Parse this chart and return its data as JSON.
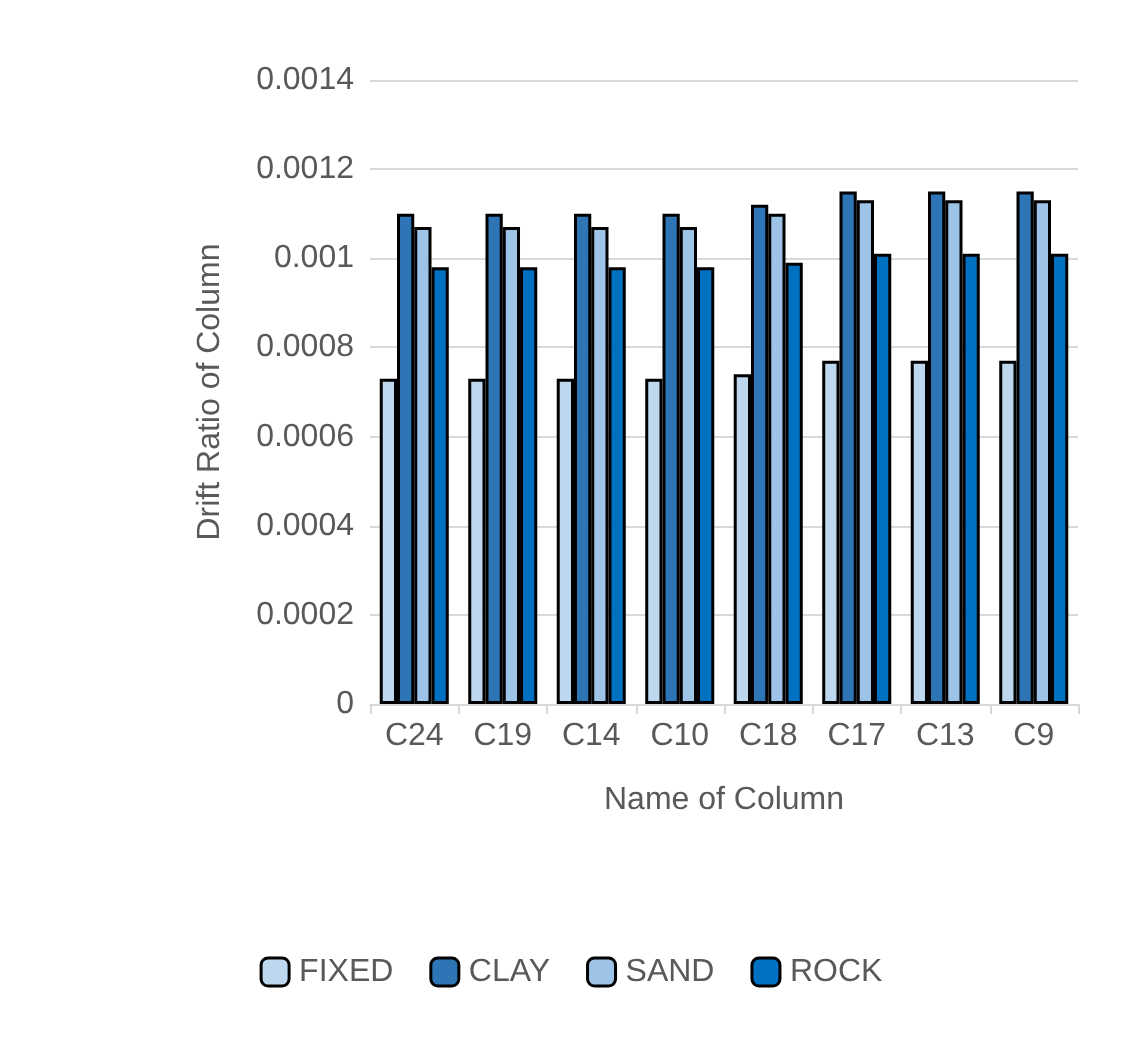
{
  "chart_data": {
    "type": "bar",
    "xlabel": "Name of Column",
    "ylabel": "Drift Ratio of Column",
    "categories": [
      "C24",
      "C19",
      "C14",
      "C10",
      "C18",
      "C17",
      "C13",
      "C9"
    ],
    "series": [
      {
        "name": "FIXED",
        "color": "#bdd7ee",
        "values": [
          0.00073,
          0.00073,
          0.00073,
          0.00073,
          0.00074,
          0.00077,
          0.00077,
          0.00077
        ]
      },
      {
        "name": "CLAY",
        "color": "#2e75b6",
        "values": [
          0.0011,
          0.0011,
          0.0011,
          0.0011,
          0.00112,
          0.00115,
          0.00115,
          0.00115
        ]
      },
      {
        "name": "SAND",
        "color": "#9dc3e6",
        "values": [
          0.00107,
          0.00107,
          0.00107,
          0.00107,
          0.0011,
          0.00113,
          0.00113,
          0.00113
        ]
      },
      {
        "name": "ROCK",
        "color": "#0070c0",
        "values": [
          0.00098,
          0.00098,
          0.00098,
          0.00098,
          0.00099,
          0.00101,
          0.00101,
          0.00101
        ]
      }
    ],
    "ylim": [
      0,
      0.0014
    ],
    "yticks": [
      0,
      0.0002,
      0.0004,
      0.0006,
      0.0008,
      0.001,
      0.0012,
      0.0014
    ],
    "grid": "y",
    "legend": "bottom"
  }
}
